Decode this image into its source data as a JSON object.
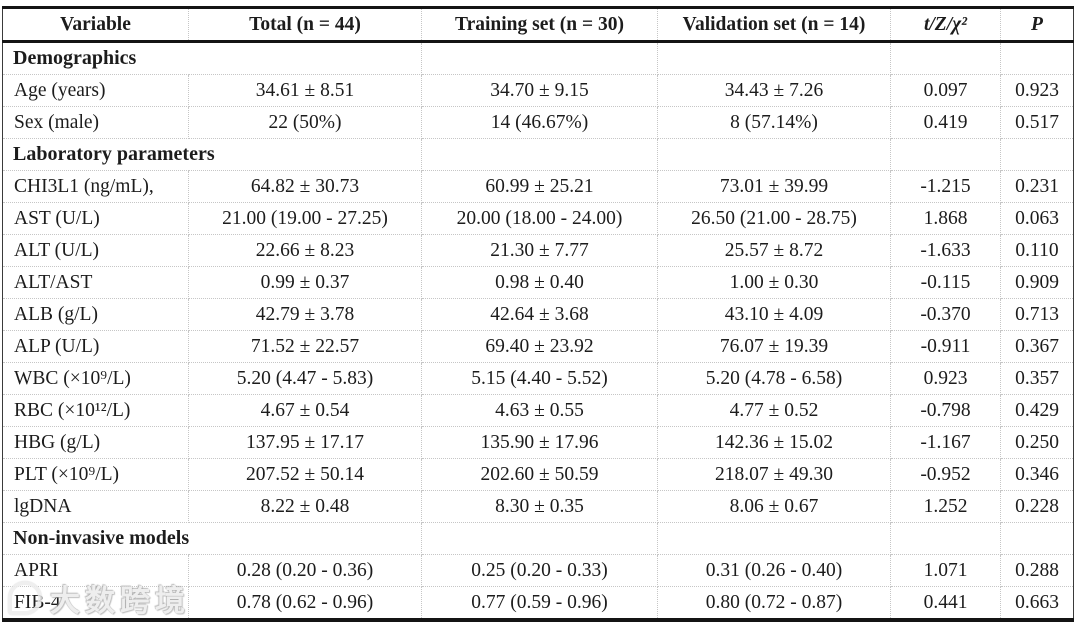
{
  "table": {
    "columns": [
      "Variable",
      "Total (n = 44)",
      "Training set (n = 30)",
      "Validation set (n = 14)",
      "t/Z/χ²",
      "P"
    ],
    "rows": [
      {
        "type": "section",
        "label": "Demographics"
      },
      {
        "type": "data",
        "cells": [
          "Age (years)",
          "34.61 ± 8.51",
          "34.70 ± 9.15",
          "34.43 ± 7.26",
          "0.097",
          "0.923"
        ]
      },
      {
        "type": "data",
        "cells": [
          "Sex (male)",
          "22 (50%)",
          "14 (46.67%)",
          "8 (57.14%)",
          "0.419",
          "0.517"
        ]
      },
      {
        "type": "section",
        "label": "Laboratory parameters"
      },
      {
        "type": "data",
        "cells": [
          "CHI3L1 (ng/mL),",
          "64.82 ± 30.73",
          "60.99 ± 25.21",
          "73.01 ± 39.99",
          "-1.215",
          "0.231"
        ]
      },
      {
        "type": "data",
        "cells": [
          "AST (U/L)",
          "21.00 (19.00 - 27.25)",
          "20.00 (18.00 - 24.00)",
          "26.50 (21.00 - 28.75)",
          "1.868",
          "0.063"
        ]
      },
      {
        "type": "data",
        "cells": [
          "ALT (U/L)",
          "22.66 ± 8.23",
          "21.30 ± 7.77",
          "25.57 ± 8.72",
          "-1.633",
          "0.110"
        ]
      },
      {
        "type": "data",
        "cells": [
          "ALT/AST",
          "0.99 ± 0.37",
          "0.98 ± 0.40",
          "1.00 ± 0.30",
          "-0.115",
          "0.909"
        ]
      },
      {
        "type": "data",
        "cells": [
          "ALB (g/L)",
          "42.79 ± 3.78",
          "42.64 ± 3.68",
          "43.10 ± 4.09",
          "-0.370",
          "0.713"
        ]
      },
      {
        "type": "data",
        "cells": [
          "ALP (U/L)",
          "71.52 ± 22.57",
          "69.40 ± 23.92",
          "76.07 ± 19.39",
          "-0.911",
          "0.367"
        ]
      },
      {
        "type": "data",
        "cells": [
          "WBC (×10⁹/L)",
          "5.20 (4.47 - 5.83)",
          "5.15 (4.40 - 5.52)",
          "5.20 (4.78 - 6.58)",
          "0.923",
          "0.357"
        ]
      },
      {
        "type": "data",
        "cells": [
          "RBC (×10¹²/L)",
          "4.67 ± 0.54",
          "4.63 ± 0.55",
          "4.77 ± 0.52",
          "-0.798",
          "0.429"
        ]
      },
      {
        "type": "data",
        "cells": [
          "HBG (g/L)",
          "137.95 ± 17.17",
          "135.90 ± 17.96",
          "142.36 ± 15.02",
          "-1.167",
          "0.250"
        ]
      },
      {
        "type": "data",
        "cells": [
          "PLT (×10⁹/L)",
          "207.52 ± 50.14",
          "202.60 ± 50.59",
          "218.07 ± 49.30",
          "-0.952",
          "0.346"
        ]
      },
      {
        "type": "data",
        "cells": [
          "lgDNA",
          "8.22 ± 0.48",
          "8.30 ± 0.35",
          "8.06 ± 0.67",
          "1.252",
          "0.228"
        ]
      },
      {
        "type": "section",
        "label": "Non-invasive models"
      },
      {
        "type": "data",
        "cells": [
          "APRI",
          "0.28 (0.20 - 0.36)",
          "0.25 (0.20 - 0.33)",
          "0.31 (0.26 - 0.40)",
          "1.071",
          "0.288"
        ]
      },
      {
        "type": "data",
        "cells": [
          "FIB-4",
          "0.78 (0.62 - 0.96)",
          "0.77 (0.59 - 0.96)",
          "0.80 (0.72 - 0.87)",
          "0.441",
          "0.663"
        ]
      }
    ]
  },
  "watermark": {
    "text": "大数跨境"
  },
  "colors": {
    "text": "#1c1c1c",
    "thick_rule": "#141414",
    "grid_dotted": "#c6c6c6",
    "background": "#ffffff"
  }
}
